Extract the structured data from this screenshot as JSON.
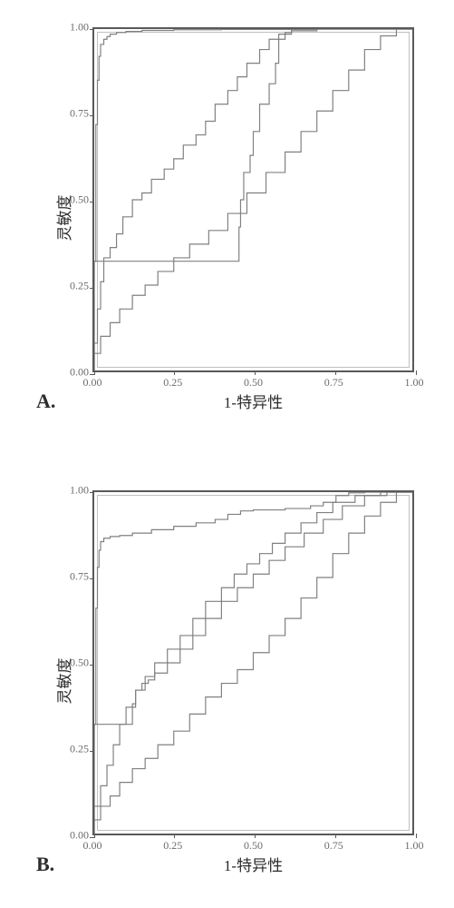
{
  "panel_a": {
    "label": "A.",
    "type": "roc",
    "xlabel": "1-特异性",
    "ylabel": "灵敏度",
    "xlim": [
      0,
      1
    ],
    "ylim": [
      0,
      1
    ],
    "xticks": [
      0.0,
      0.25,
      0.5,
      0.75,
      1.0
    ],
    "yticks": [
      0.0,
      0.25,
      0.5,
      0.75,
      1.0
    ],
    "tick_format": "0.00",
    "tick_fontsize": 12,
    "label_fontsize": 17,
    "panel_label_fontsize": 22,
    "background_color": "#ffffff",
    "border_color": "#595959",
    "line_color": "#808080",
    "line_width": 1.2,
    "curves": [
      [
        [
          0.0,
          0.0
        ],
        [
          0.005,
          0.32
        ],
        [
          0.01,
          0.72
        ],
        [
          0.015,
          0.85
        ],
        [
          0.02,
          0.92
        ],
        [
          0.03,
          0.955
        ],
        [
          0.04,
          0.97
        ],
        [
          0.05,
          0.978
        ],
        [
          0.07,
          0.985
        ],
        [
          0.1,
          0.99
        ],
        [
          0.15,
          0.993
        ],
        [
          0.25,
          0.996
        ],
        [
          0.4,
          0.998
        ],
        [
          0.7,
          0.999
        ],
        [
          1.0,
          1.0
        ]
      ],
      [
        [
          0.0,
          0.0
        ],
        [
          0.01,
          0.08
        ],
        [
          0.02,
          0.18
        ],
        [
          0.03,
          0.26
        ],
        [
          0.05,
          0.33
        ],
        [
          0.07,
          0.36
        ],
        [
          0.09,
          0.4
        ],
        [
          0.12,
          0.45
        ],
        [
          0.15,
          0.5
        ],
        [
          0.18,
          0.52
        ],
        [
          0.22,
          0.56
        ],
        [
          0.25,
          0.59
        ],
        [
          0.28,
          0.62
        ],
        [
          0.32,
          0.66
        ],
        [
          0.35,
          0.69
        ],
        [
          0.38,
          0.73
        ],
        [
          0.42,
          0.78
        ],
        [
          0.45,
          0.82
        ],
        [
          0.48,
          0.86
        ],
        [
          0.52,
          0.9
        ],
        [
          0.55,
          0.94
        ],
        [
          0.58,
          0.97
        ],
        [
          0.62,
          0.985
        ],
        [
          0.7,
          0.995
        ],
        [
          0.8,
          1.0
        ],
        [
          1.0,
          1.0
        ]
      ],
      [
        [
          0.0,
          0.0
        ],
        [
          0.01,
          0.32
        ],
        [
          0.455,
          0.32
        ],
        [
          0.46,
          0.42
        ],
        [
          0.47,
          0.5
        ],
        [
          0.49,
          0.58
        ],
        [
          0.5,
          0.63
        ],
        [
          0.52,
          0.7
        ],
        [
          0.55,
          0.78
        ],
        [
          0.57,
          0.84
        ],
        [
          0.58,
          0.9
        ],
        [
          0.6,
          0.97
        ],
        [
          0.62,
          0.99
        ],
        [
          0.7,
          1.0
        ],
        [
          1.0,
          1.0
        ]
      ],
      [
        [
          0.0,
          0.0
        ],
        [
          0.02,
          0.05
        ],
        [
          0.05,
          0.1
        ],
        [
          0.08,
          0.14
        ],
        [
          0.12,
          0.18
        ],
        [
          0.16,
          0.22
        ],
        [
          0.2,
          0.25
        ],
        [
          0.25,
          0.29
        ],
        [
          0.3,
          0.33
        ],
        [
          0.36,
          0.37
        ],
        [
          0.42,
          0.41
        ],
        [
          0.48,
          0.46
        ],
        [
          0.54,
          0.52
        ],
        [
          0.6,
          0.58
        ],
        [
          0.65,
          0.64
        ],
        [
          0.7,
          0.7
        ],
        [
          0.75,
          0.76
        ],
        [
          0.8,
          0.82
        ],
        [
          0.85,
          0.88
        ],
        [
          0.9,
          0.94
        ],
        [
          0.95,
          0.98
        ],
        [
          1.0,
          1.0
        ]
      ]
    ]
  },
  "panel_b": {
    "label": "B.",
    "type": "roc",
    "xlabel": "1-特异性",
    "ylabel": "灵敏度",
    "xlim": [
      0,
      1
    ],
    "ylim": [
      0,
      1
    ],
    "xticks": [
      0.0,
      0.25,
      0.5,
      0.75,
      1.0
    ],
    "yticks": [
      0.0,
      0.25,
      0.5,
      0.75,
      1.0
    ],
    "tick_format": "0.00",
    "tick_fontsize": 12,
    "label_fontsize": 17,
    "panel_label_fontsize": 22,
    "background_color": "#ffffff",
    "border_color": "#595959",
    "line_color": "#808080",
    "line_width": 1.2,
    "curves": [
      [
        [
          0.0,
          0.0
        ],
        [
          0.005,
          0.32
        ],
        [
          0.01,
          0.66
        ],
        [
          0.015,
          0.78
        ],
        [
          0.02,
          0.83
        ],
        [
          0.03,
          0.855
        ],
        [
          0.05,
          0.865
        ],
        [
          0.08,
          0.87
        ],
        [
          0.12,
          0.873
        ],
        [
          0.18,
          0.88
        ],
        [
          0.25,
          0.89
        ],
        [
          0.32,
          0.9
        ],
        [
          0.38,
          0.91
        ],
        [
          0.42,
          0.92
        ],
        [
          0.46,
          0.935
        ],
        [
          0.5,
          0.945
        ],
        [
          0.6,
          0.948
        ],
        [
          0.68,
          0.952
        ],
        [
          0.72,
          0.96
        ],
        [
          0.76,
          0.97
        ],
        [
          0.8,
          0.99
        ],
        [
          0.85,
          0.998
        ],
        [
          0.92,
          1.0
        ],
        [
          1.0,
          1.0
        ]
      ],
      [
        [
          0.0,
          0.0
        ],
        [
          0.02,
          0.08
        ],
        [
          0.04,
          0.14
        ],
        [
          0.06,
          0.2
        ],
        [
          0.08,
          0.26
        ],
        [
          0.1,
          0.32
        ],
        [
          0.13,
          0.37
        ],
        [
          0.16,
          0.42
        ],
        [
          0.19,
          0.46
        ],
        [
          0.23,
          0.5
        ],
        [
          0.27,
          0.54
        ],
        [
          0.31,
          0.58
        ],
        [
          0.35,
          0.63
        ],
        [
          0.4,
          0.68
        ],
        [
          0.44,
          0.72
        ],
        [
          0.48,
          0.76
        ],
        [
          0.52,
          0.79
        ],
        [
          0.56,
          0.82
        ],
        [
          0.6,
          0.85
        ],
        [
          0.65,
          0.88
        ],
        [
          0.7,
          0.91
        ],
        [
          0.75,
          0.94
        ],
        [
          0.82,
          0.97
        ],
        [
          0.9,
          0.99
        ],
        [
          1.0,
          1.0
        ]
      ],
      [
        [
          0.0,
          0.0
        ],
        [
          0.01,
          0.32
        ],
        [
          0.12,
          0.32
        ],
        [
          0.13,
          0.38
        ],
        [
          0.15,
          0.42
        ],
        [
          0.17,
          0.44
        ],
        [
          0.19,
          0.45
        ],
        [
          0.23,
          0.47
        ],
        [
          0.27,
          0.5
        ],
        [
          0.31,
          0.54
        ],
        [
          0.35,
          0.58
        ],
        [
          0.4,
          0.63
        ],
        [
          0.45,
          0.68
        ],
        [
          0.5,
          0.72
        ],
        [
          0.55,
          0.76
        ],
        [
          0.6,
          0.8
        ],
        [
          0.66,
          0.84
        ],
        [
          0.72,
          0.88
        ],
        [
          0.78,
          0.92
        ],
        [
          0.85,
          0.96
        ],
        [
          0.92,
          0.99
        ],
        [
          1.0,
          1.0
        ]
      ],
      [
        [
          0.0,
          0.0
        ],
        [
          0.02,
          0.04
        ],
        [
          0.05,
          0.08
        ],
        [
          0.08,
          0.11
        ],
        [
          0.12,
          0.15
        ],
        [
          0.16,
          0.19
        ],
        [
          0.2,
          0.22
        ],
        [
          0.25,
          0.26
        ],
        [
          0.3,
          0.3
        ],
        [
          0.35,
          0.35
        ],
        [
          0.4,
          0.4
        ],
        [
          0.45,
          0.44
        ],
        [
          0.5,
          0.48
        ],
        [
          0.55,
          0.53
        ],
        [
          0.6,
          0.58
        ],
        [
          0.65,
          0.63
        ],
        [
          0.7,
          0.69
        ],
        [
          0.75,
          0.75
        ],
        [
          0.8,
          0.82
        ],
        [
          0.85,
          0.88
        ],
        [
          0.9,
          0.93
        ],
        [
          0.95,
          0.97
        ],
        [
          1.0,
          1.0
        ]
      ]
    ]
  }
}
